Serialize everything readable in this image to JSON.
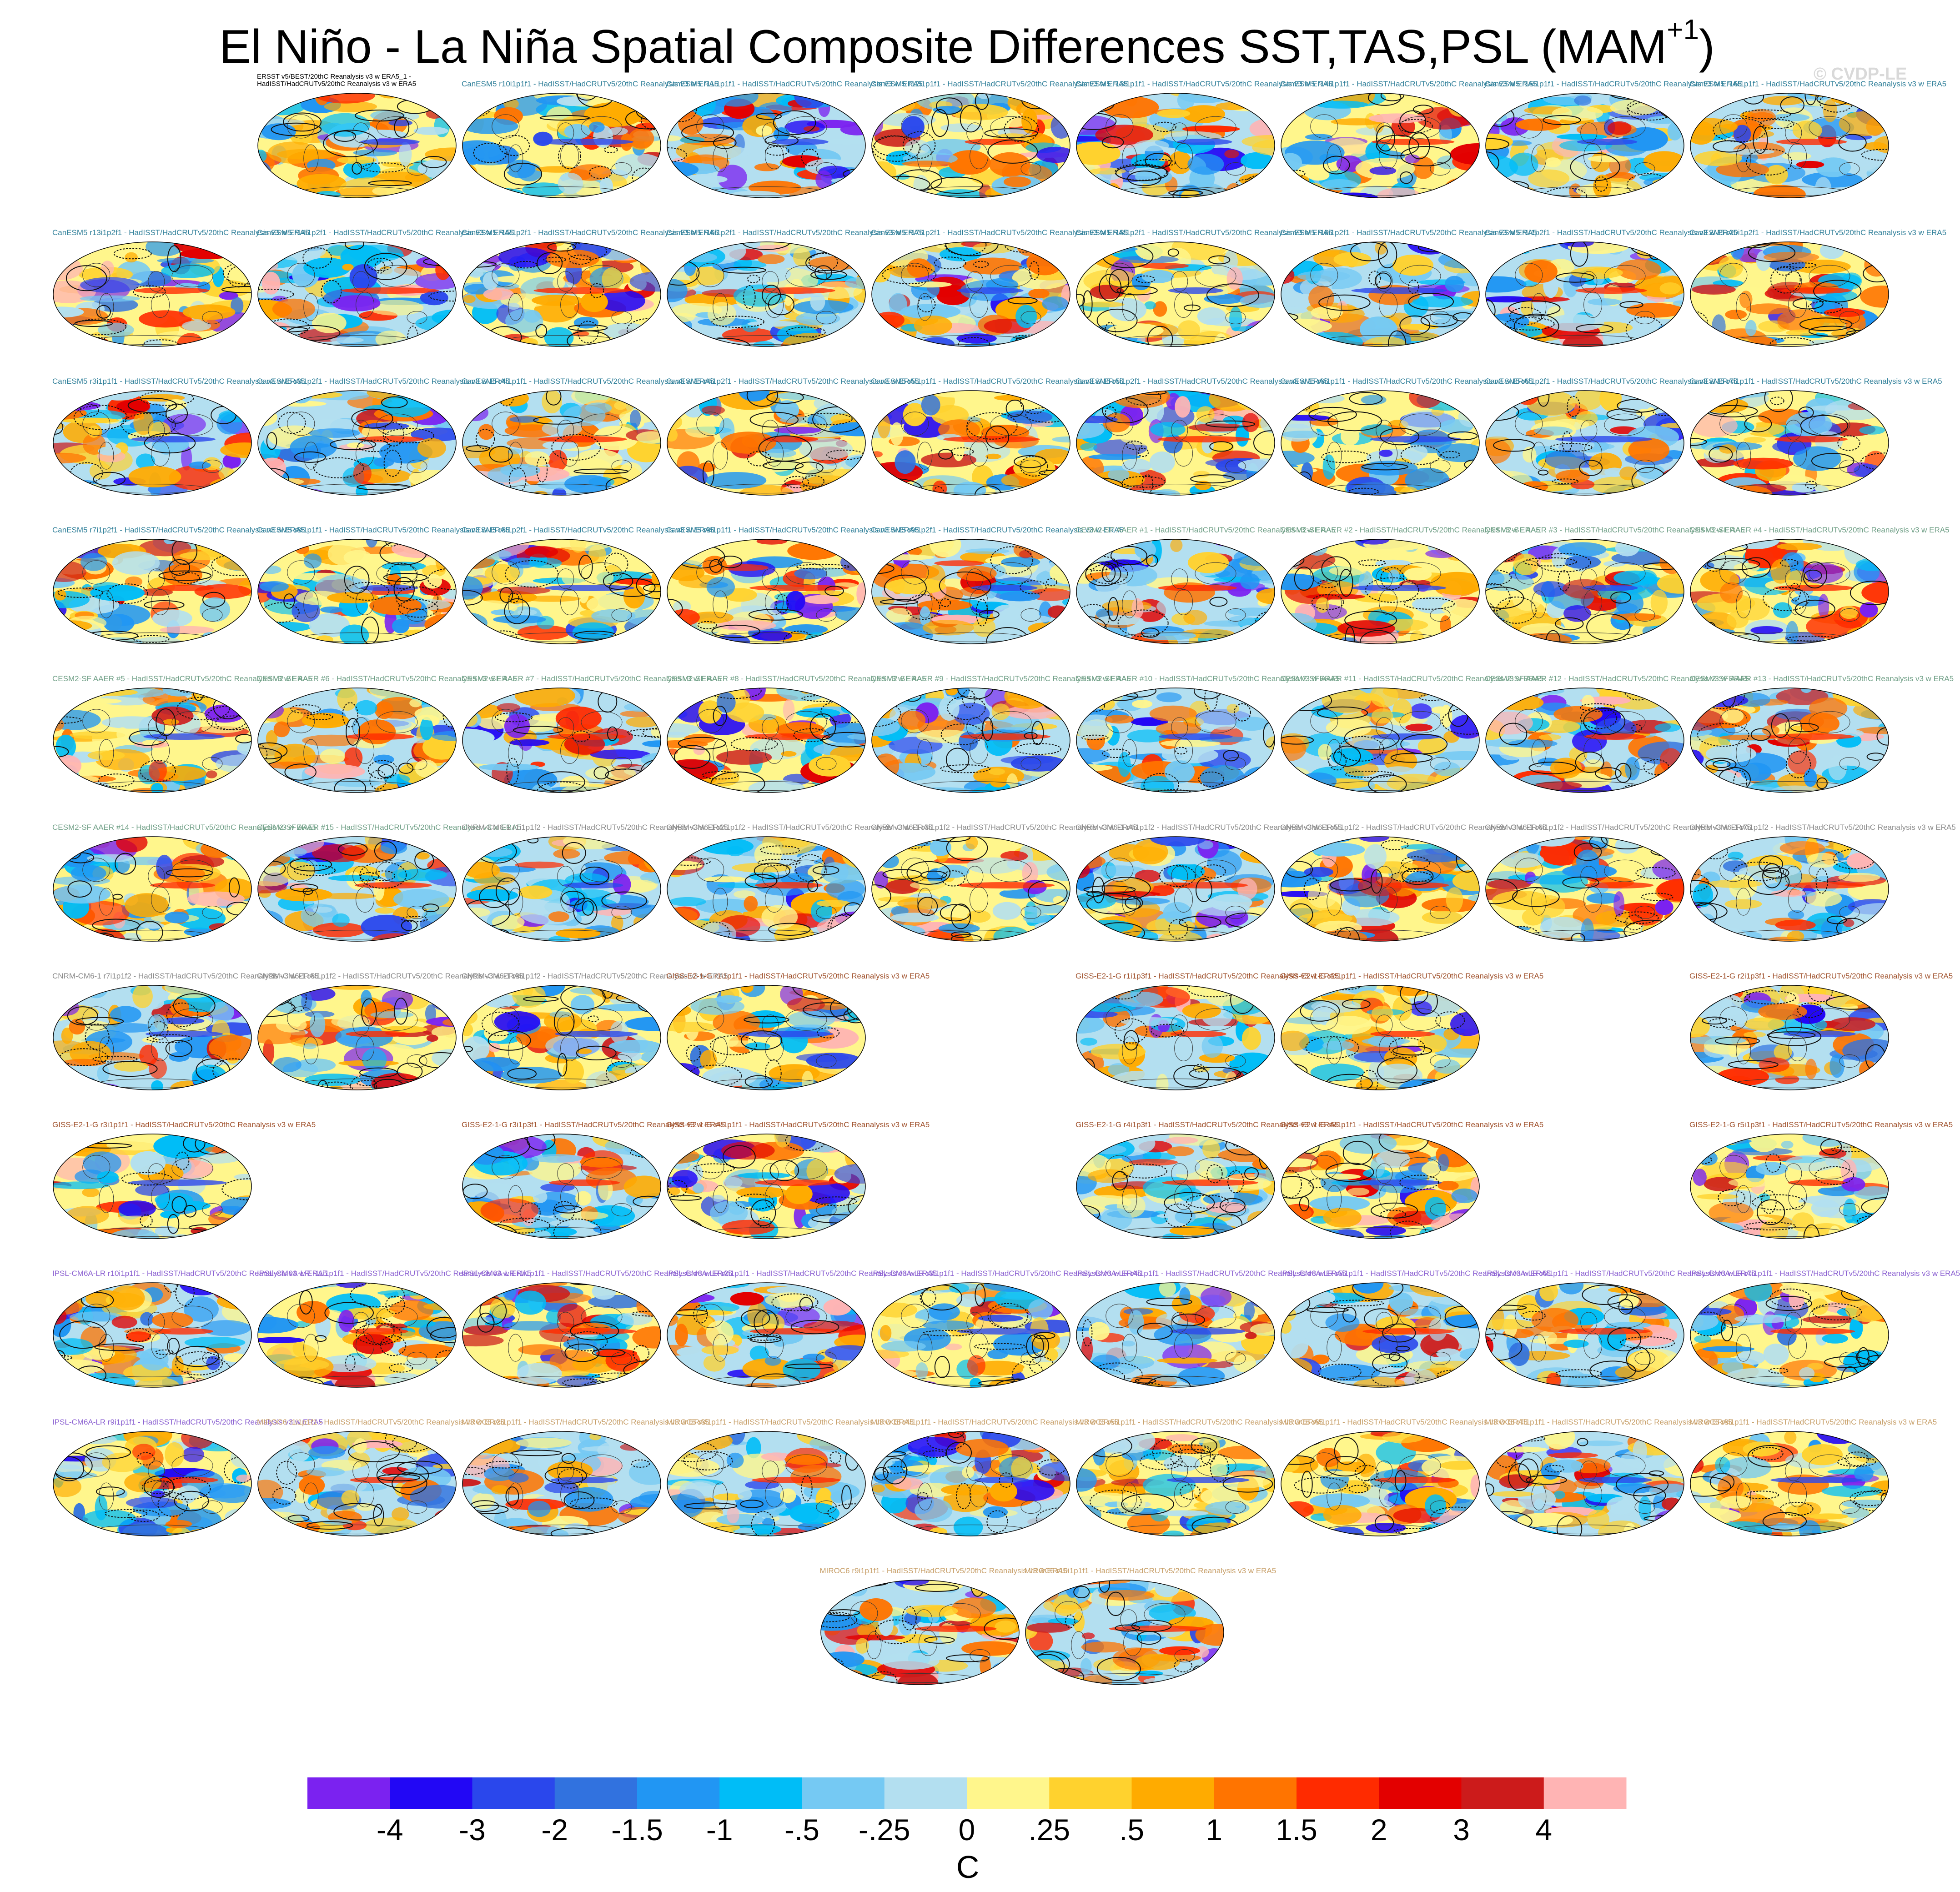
{
  "title_main": "El Niño - La Niña Spatial Composite Differences SST,TAS,PSL (MAM",
  "title_sup": "+1",
  "title_close": ")",
  "credit": "© CVDP-LE",
  "colors": {
    "canesm": "#2f7f99",
    "cesm": "#6f9f86",
    "cnrm": "#8a8a8a",
    "giss": "#a0522d",
    "ipsl": "#8a5fd1",
    "miroc": "#c8a06a",
    "obs": "#000000"
  },
  "colormap": [
    "#7b22f0",
    "#2207f5",
    "#2a47ec",
    "#3172df",
    "#2196f3",
    "#00bdf7",
    "#75c9f3",
    "#b3dff0",
    "#fff68c",
    "#ffd22e",
    "#ffab00",
    "#ff7400",
    "#ff2b00",
    "#e30000",
    "#cc1b1b",
    "#ffb4b4"
  ],
  "chart_data": {
    "type": "map-panel-grid",
    "units": "C",
    "colorbar_levels": [
      "-4",
      "-3",
      "-2",
      "-1.5",
      "-1",
      "-.5",
      "-.25",
      "0",
      ".25",
      ".5",
      "1",
      "1.5",
      "2",
      "3",
      "4"
    ],
    "rows": [
      [
        {
          "col": 1,
          "label": "ERSST v5/BEST/20thC Reanalysis v3 w ERA5_1 - HadISST/HadCRUTv5/20thC Reanalysis v3 w ERA5",
          "group": "obs"
        },
        {
          "col": 2,
          "label": "CanESM5 r10i1p1f1 - HadISST/HadCRUTv5/20thC Reanalysis v3 w ERA5",
          "group": "canesm"
        },
        {
          "col": 3,
          "label": "CanESM5 r11i1p1f1 - HadISST/HadCRUTv5/20thC Reanalysis v3 w ERA5",
          "group": "canesm"
        },
        {
          "col": 4,
          "label": "CanESM5 r12i1p1f1 - HadISST/HadCRUTv5/20thC Reanalysis v3 w ERA5",
          "group": "canesm"
        },
        {
          "col": 5,
          "label": "CanESM5 r13i1p1f1 - HadISST/HadCRUTv5/20thC Reanalysis v3 w ERA5",
          "group": "canesm"
        },
        {
          "col": 6,
          "label": "CanESM5 r14i1p1f1 - HadISST/HadCRUTv5/20thC Reanalysis v3 w ERA5",
          "group": "canesm"
        },
        {
          "col": 7,
          "label": "CanESM5 r15i1p1f1 - HadISST/HadCRUTv5/20thC Reanalysis v3 w ERA5",
          "group": "canesm"
        },
        {
          "col": 8,
          "label": "CanESM5 r16i1p1f1 - HadISST/HadCRUTv5/20thC Reanalysis v3 w ERA5",
          "group": "canesm"
        }
      ],
      [
        {
          "col": 0,
          "label": "CanESM5 r13i1p2f1 - HadISST/HadCRUTv5/20thC Reanalysis v3 w ERA5",
          "group": "canesm"
        },
        {
          "col": 1,
          "label": "CanESM5 r14i1p2f1 - HadISST/HadCRUTv5/20thC Reanalysis v3 w ERA5",
          "group": "canesm"
        },
        {
          "col": 2,
          "label": "CanESM5 r15i1p2f1 - HadISST/HadCRUTv5/20thC Reanalysis v3 w ERA5",
          "group": "canesm"
        },
        {
          "col": 3,
          "label": "CanESM5 r16i1p2f1 - HadISST/HadCRUTv5/20thC Reanalysis v3 w ERA5",
          "group": "canesm"
        },
        {
          "col": 4,
          "label": "CanESM5 r17i1p2f1 - HadISST/HadCRUTv5/20thC Reanalysis v3 w ERA5",
          "group": "canesm"
        },
        {
          "col": 5,
          "label": "CanESM5 r18i1p2f1 - HadISST/HadCRUTv5/20thC Reanalysis v3 w ERA5",
          "group": "canesm"
        },
        {
          "col": 6,
          "label": "CanESM5 r19i1p2f1 - HadISST/HadCRUTv5/20thC Reanalysis v3 w ERA5",
          "group": "canesm"
        },
        {
          "col": 7,
          "label": "CanESM5 r1i1p2f1 - HadISST/HadCRUTv5/20thC Reanalysis v3 w ERA5",
          "group": "canesm"
        },
        {
          "col": 8,
          "label": "CanESM5 r20i1p2f1 - HadISST/HadCRUTv5/20thC Reanalysis v3 w ERA5",
          "group": "canesm"
        }
      ],
      [
        {
          "col": 0,
          "label": "CanESM5 r3i1p1f1 - HadISST/HadCRUTv5/20thC Reanalysis v3 w ERA5",
          "group": "canesm"
        },
        {
          "col": 1,
          "label": "CanESM5 r3i1p2f1 - HadISST/HadCRUTv5/20thC Reanalysis v3 w ERA5",
          "group": "canesm"
        },
        {
          "col": 2,
          "label": "CanESM5 r4i1p1f1 - HadISST/HadCRUTv5/20thC Reanalysis v3 w ERA5",
          "group": "canesm"
        },
        {
          "col": 3,
          "label": "CanESM5 r4i1p2f1 - HadISST/HadCRUTv5/20thC Reanalysis v3 w ERA5",
          "group": "canesm"
        },
        {
          "col": 4,
          "label": "CanESM5 r5i1p1f1 - HadISST/HadCRUTv5/20thC Reanalysis v3 w ERA5",
          "group": "canesm"
        },
        {
          "col": 5,
          "label": "CanESM5 r5i1p2f1 - HadISST/HadCRUTv5/20thC Reanalysis v3 w ERA5",
          "group": "canesm"
        },
        {
          "col": 6,
          "label": "CanESM5 r6i1p1f1 - HadISST/HadCRUTv5/20thC Reanalysis v3 w ERA5",
          "group": "canesm"
        },
        {
          "col": 7,
          "label": "CanESM5 r6i1p2f1 - HadISST/HadCRUTv5/20thC Reanalysis v3 w ERA5",
          "group": "canesm"
        },
        {
          "col": 8,
          "label": "CanESM5 r7i1p1f1 - HadISST/HadCRUTv5/20thC Reanalysis v3 w ERA5",
          "group": "canesm"
        }
      ],
      [
        {
          "col": 0,
          "label": "CanESM5 r7i1p2f1 - HadISST/HadCRUTv5/20thC Reanalysis v3 w ERA5",
          "group": "canesm"
        },
        {
          "col": 1,
          "label": "CanESM5 r8i1p1f1 - HadISST/HadCRUTv5/20thC Reanalysis v3 w ERA5",
          "group": "canesm"
        },
        {
          "col": 2,
          "label": "CanESM5 r8i1p2f1 - HadISST/HadCRUTv5/20thC Reanalysis v3 w ERA5",
          "group": "canesm"
        },
        {
          "col": 3,
          "label": "CanESM5 r9i1p1f1 - HadISST/HadCRUTv5/20thC Reanalysis v3 w ERA5",
          "group": "canesm"
        },
        {
          "col": 4,
          "label": "CanESM5 r9i1p2f1 - HadISST/HadCRUTv5/20thC Reanalysis v3 w ERA5",
          "group": "canesm"
        },
        {
          "col": 5,
          "label": "CESM2-SF AAER #1 - HadISST/HadCRUTv5/20thC Reanalysis v3 w ERA5",
          "group": "cesm"
        },
        {
          "col": 6,
          "label": "CESM2-SF AAER #2 - HadISST/HadCRUTv5/20thC Reanalysis v3 w ERA5",
          "group": "cesm"
        },
        {
          "col": 7,
          "label": "CESM2-SF AAER #3 - HadISST/HadCRUTv5/20thC Reanalysis v3 w ERA5",
          "group": "cesm"
        },
        {
          "col": 8,
          "label": "CESM2-SF AAER #4 - HadISST/HadCRUTv5/20thC Reanalysis v3 w ERA5",
          "group": "cesm"
        }
      ],
      [
        {
          "col": 0,
          "label": "CESM2-SF AAER #5 - HadISST/HadCRUTv5/20thC Reanalysis v3 w ERA5",
          "group": "cesm"
        },
        {
          "col": 1,
          "label": "CESM2-SF AAER #6 - HadISST/HadCRUTv5/20thC Reanalysis v3 w ERA5",
          "group": "cesm"
        },
        {
          "col": 2,
          "label": "CESM2-SF AAER #7 - HadISST/HadCRUTv5/20thC Reanalysis v3 w ERA5",
          "group": "cesm"
        },
        {
          "col": 3,
          "label": "CESM2-SF AAER #8 - HadISST/HadCRUTv5/20thC Reanalysis v3 w ERA5",
          "group": "cesm"
        },
        {
          "col": 4,
          "label": "CESM2-SF AAER #9 - HadISST/HadCRUTv5/20thC Reanalysis v3 w ERA5",
          "group": "cesm"
        },
        {
          "col": 5,
          "label": "CESM2-SF AAER #10 - HadISST/HadCRUTv5/20thC Reanalysis v3 w ERA5",
          "group": "cesm"
        },
        {
          "col": 6,
          "label": "CESM2-SF AAER #11 - HadISST/HadCRUTv5/20thC Reanalysis v3 w ERA5",
          "group": "cesm"
        },
        {
          "col": 7,
          "label": "CESM2-SF AAER #12 - HadISST/HadCRUTv5/20thC Reanalysis v3 w ERA5",
          "group": "cesm"
        },
        {
          "col": 8,
          "label": "CESM2-SF AAER #13 - HadISST/HadCRUTv5/20thC Reanalysis v3 w ERA5",
          "group": "cesm"
        }
      ],
      [
        {
          "col": 0,
          "label": "CESM2-SF AAER #14 - HadISST/HadCRUTv5/20thC Reanalysis v3 w ERA5",
          "group": "cesm"
        },
        {
          "col": 1,
          "label": "CESM2-SF AAER #15 - HadISST/HadCRUTv5/20thC Reanalysis v3 w ERA5",
          "group": "cesm"
        },
        {
          "col": 2,
          "label": "CNRM-CM6-1 r1i1p1f2 - HadISST/HadCRUTv5/20thC Reanalysis v3 w ERA5",
          "group": "cnrm"
        },
        {
          "col": 3,
          "label": "CNRM-CM6-1 r2i1p1f2 - HadISST/HadCRUTv5/20thC Reanalysis v3 w ERA5",
          "group": "cnrm"
        },
        {
          "col": 4,
          "label": "CNRM-CM6-1 r3i1p1f2 - HadISST/HadCRUTv5/20thC Reanalysis v3 w ERA5",
          "group": "cnrm"
        },
        {
          "col": 5,
          "label": "CNRM-CM6-1 r4i1p1f2 - HadISST/HadCRUTv5/20thC Reanalysis v3 w ERA5",
          "group": "cnrm"
        },
        {
          "col": 6,
          "label": "CNRM-CM6-1 r5i1p1f2 - HadISST/HadCRUTv5/20thC Reanalysis v3 w ERA5",
          "group": "cnrm"
        },
        {
          "col": 7,
          "label": "CNRM-CM6-1 r6i1p1f2 - HadISST/HadCRUTv5/20thC Reanalysis v3 w ERA5",
          "group": "cnrm"
        },
        {
          "col": 8,
          "label": "CNRM-CM6-1 r7i1p1f2 - HadISST/HadCRUTv5/20thC Reanalysis v3 w ERA5",
          "group": "cnrm"
        }
      ],
      [
        {
          "col": 0,
          "label": "CNRM-CM6-1 r7i1p1f2 - HadISST/HadCRUTv5/20thC Reanalysis v3 w ERA5",
          "group": "cnrm"
        },
        {
          "col": 1,
          "label": "CNRM-CM6-1 r8i1p1f2 - HadISST/HadCRUTv5/20thC Reanalysis v3 w ERA5",
          "group": "cnrm"
        },
        {
          "col": 2,
          "label": "CNRM-CM6-1 r9i1p1f2 - HadISST/HadCRUTv5/20thC Reanalysis v3 w ERA5",
          "group": "cnrm"
        },
        {
          "col": 3,
          "label": "GISS-E2-1-G r1i1p1f1 - HadISST/HadCRUTv5/20thC Reanalysis v3 w ERA5",
          "group": "giss"
        },
        {
          "col": 5,
          "label": "GISS-E2-1-G r1i1p3f1 - HadISST/HadCRUTv5/20thC Reanalysis v3 w ERA5",
          "group": "giss"
        },
        {
          "col": 6,
          "label": "GISS-E2-1-G r2i1p1f1 - HadISST/HadCRUTv5/20thC Reanalysis v3 w ERA5",
          "group": "giss"
        },
        {
          "col": 8,
          "label": "GISS-E2-1-G r2i1p3f1 - HadISST/HadCRUTv5/20thC Reanalysis v3 w ERA5",
          "group": "giss"
        }
      ],
      [
        {
          "col": 0,
          "label": "GISS-E2-1-G r3i1p1f1 - HadISST/HadCRUTv5/20thC Reanalysis v3 w ERA5",
          "group": "giss"
        },
        {
          "col": 2,
          "label": "GISS-E2-1-G r3i1p3f1 - HadISST/HadCRUTv5/20thC Reanalysis v3 w ERA5",
          "group": "giss"
        },
        {
          "col": 3,
          "label": "GISS-E2-1-G r4i1p1f1 - HadISST/HadCRUTv5/20thC Reanalysis v3 w ERA5",
          "group": "giss"
        },
        {
          "col": 5,
          "label": "GISS-E2-1-G r4i1p3f1 - HadISST/HadCRUTv5/20thC Reanalysis v3 w ERA5",
          "group": "giss"
        },
        {
          "col": 6,
          "label": "GISS-E2-1-G r5i1p1f1 - HadISST/HadCRUTv5/20thC Reanalysis v3 w ERA5",
          "group": "giss"
        },
        {
          "col": 8,
          "label": "GISS-E2-1-G r5i1p3f1 - HadISST/HadCRUTv5/20thC Reanalysis v3 w ERA5",
          "group": "giss"
        }
      ],
      [
        {
          "col": 0,
          "label": "IPSL-CM6A-LR r10i1p1f1 - HadISST/HadCRUTv5/20thC Reanalysis v3 w ERA5",
          "group": "ipsl"
        },
        {
          "col": 1,
          "label": "IPSL-CM6A-LR r11i1p1f1 - HadISST/HadCRUTv5/20thC Reanalysis v3 w ERA5",
          "group": "ipsl"
        },
        {
          "col": 2,
          "label": "IPSL-CM6A-LR r1i1p1f1 - HadISST/HadCRUTv5/20thC Reanalysis v3 w ERA5",
          "group": "ipsl"
        },
        {
          "col": 3,
          "label": "IPSL-CM6A-LR r2i1p1f1 - HadISST/HadCRUTv5/20thC Reanalysis v3 w ERA5",
          "group": "ipsl"
        },
        {
          "col": 4,
          "label": "IPSL-CM6A-LR r3i1p1f1 - HadISST/HadCRUTv5/20thC Reanalysis v3 w ERA5",
          "group": "ipsl"
        },
        {
          "col": 5,
          "label": "IPSL-CM6A-LR r4i1p1f1 - HadISST/HadCRUTv5/20thC Reanalysis v3 w ERA5",
          "group": "ipsl"
        },
        {
          "col": 6,
          "label": "IPSL-CM6A-LR r5i1p1f1 - HadISST/HadCRUTv5/20thC Reanalysis v3 w ERA5",
          "group": "ipsl"
        },
        {
          "col": 7,
          "label": "IPSL-CM6A-LR r6i1p1f1 - HadISST/HadCRUTv5/20thC Reanalysis v3 w ERA5",
          "group": "ipsl"
        },
        {
          "col": 8,
          "label": "IPSL-CM6A-LR r7i1p1f1 - HadISST/HadCRUTv5/20thC Reanalysis v3 w ERA5",
          "group": "ipsl"
        }
      ],
      [
        {
          "col": 0,
          "label": "IPSL-CM6A-LR r9i1p1f1 - HadISST/HadCRUTv5/20thC Reanalysis v3 w ERA5",
          "group": "ipsl"
        },
        {
          "col": 1,
          "label": "MIROC6 r1i1p1f1 - HadISST/HadCRUTv5/20thC Reanalysis v3 w ERA5",
          "group": "miroc"
        },
        {
          "col": 2,
          "label": "MIROC6 r2i1p1f1 - HadISST/HadCRUTv5/20thC Reanalysis v3 w ERA5",
          "group": "miroc"
        },
        {
          "col": 3,
          "label": "MIROC6 r3i1p1f1 - HadISST/HadCRUTv5/20thC Reanalysis v3 w ERA5",
          "group": "miroc"
        },
        {
          "col": 4,
          "label": "MIROC6 r4i1p1f1 - HadISST/HadCRUTv5/20thC Reanalysis v3 w ERA5",
          "group": "miroc"
        },
        {
          "col": 5,
          "label": "MIROC6 r5i1p1f1 - HadISST/HadCRUTv5/20thC Reanalysis v3 w ERA5",
          "group": "miroc"
        },
        {
          "col": 6,
          "label": "MIROC6 r6i1p1f1 - HadISST/HadCRUTv5/20thC Reanalysis v3 w ERA5",
          "group": "miroc"
        },
        {
          "col": 7,
          "label": "MIROC6 r7i1p1f1 - HadISST/HadCRUTv5/20thC Reanalysis v3 w ERA5",
          "group": "miroc"
        },
        {
          "col": 8,
          "label": "MIROC6 r8i1p1f1 - HadISST/HadCRUTv5/20thC Reanalysis v3 w ERA5",
          "group": "miroc"
        }
      ],
      [
        {
          "col": 3.75,
          "label": "MIROC6 r9i1p1f1 - HadISST/HadCRUTv5/20thC Reanalysis v3 w ERA5",
          "group": "miroc"
        },
        {
          "col": 4.75,
          "label": "MIROC6 r10i1p1f1 - HadISST/HadCRUTv5/20thC Reanalysis v3 w ERA5",
          "group": "miroc"
        }
      ]
    ]
  }
}
